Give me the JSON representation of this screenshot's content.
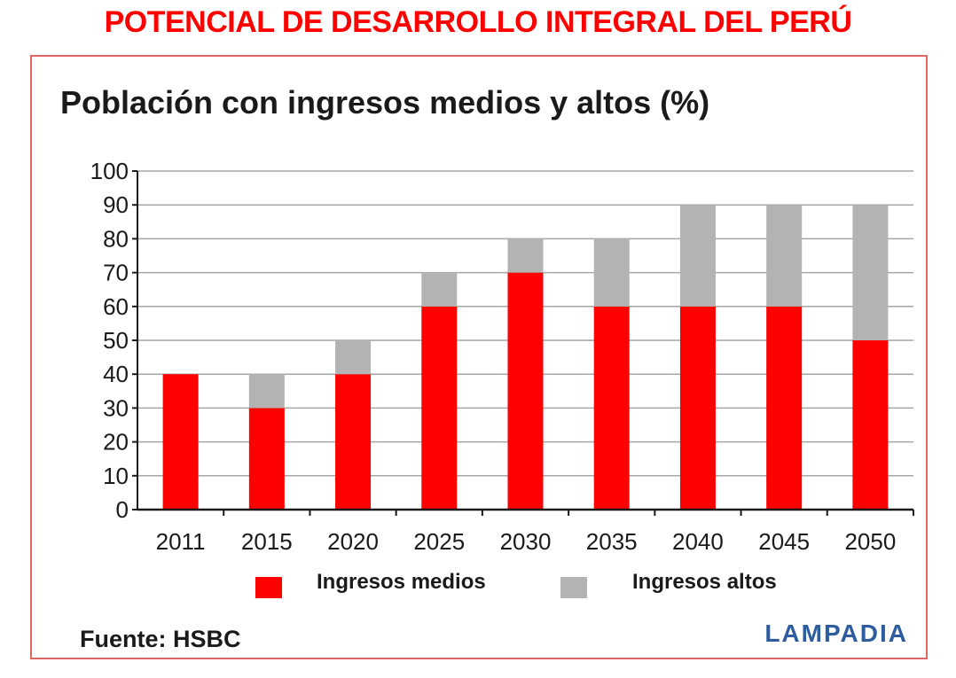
{
  "page": {
    "title": "POTENCIAL DE DESARROLLO INTEGRAL DEL PERÚ",
    "source": "Fuente: HSBC",
    "brand": "LAMPADIA"
  },
  "colors": {
    "title": "#ff0000",
    "frame": "#e06666",
    "series_medios": "#ff0000",
    "series_altos": "#b3b3b3",
    "grid": "#a6a6a6",
    "brand": "#2e5d9f"
  },
  "chart_data": {
    "type": "bar",
    "stacked": true,
    "title": "Población con ingresos medios y altos (%)",
    "categories": [
      "2011",
      "2015",
      "2020",
      "2025",
      "2030",
      "2035",
      "2040",
      "2045",
      "2050"
    ],
    "series": [
      {
        "name": "Ingresos medios",
        "values": [
          40,
          30,
          40,
          60,
          70,
          60,
          60,
          60,
          50
        ]
      },
      {
        "name": "Ingresos altos",
        "values": [
          0,
          10,
          10,
          10,
          10,
          20,
          30,
          30,
          40
        ]
      }
    ],
    "ylim": [
      0,
      100
    ],
    "yticks": [
      0,
      10,
      20,
      30,
      40,
      50,
      60,
      70,
      80,
      90,
      100
    ],
    "grid": true,
    "legend_position": "bottom",
    "xlabel": "",
    "ylabel": ""
  }
}
